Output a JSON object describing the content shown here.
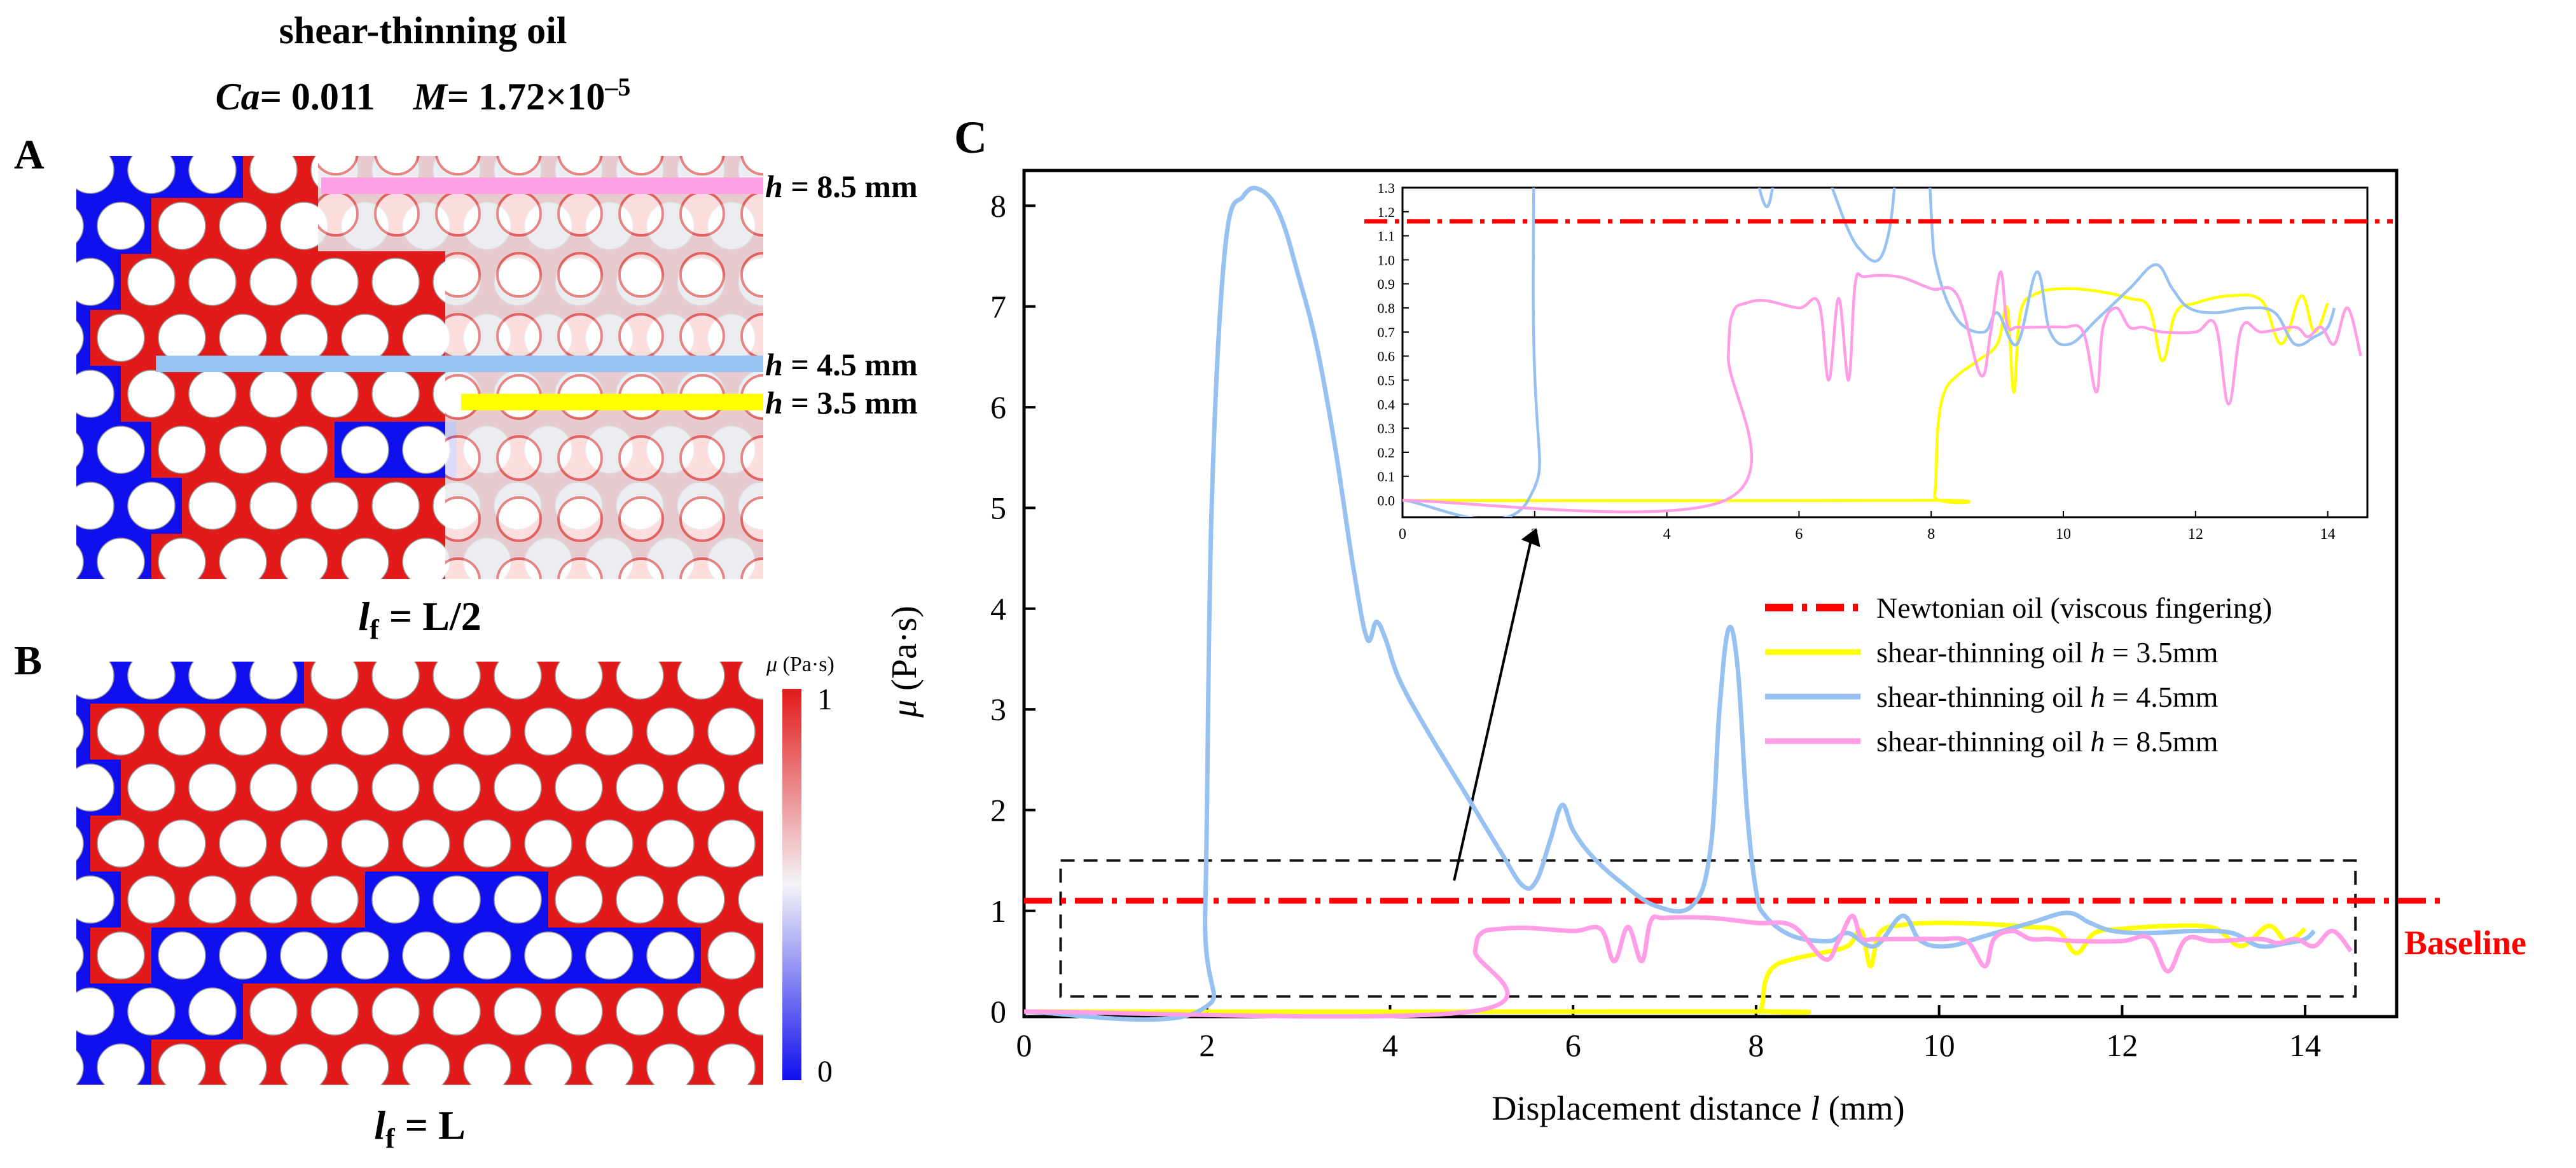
{
  "figure": {
    "title": "shear-thinning oil",
    "params": {
      "ca_label": "Ca",
      "ca_value": "= 0.011",
      "m_label": "M",
      "m_value": "= 1.72×10",
      "m_exponent": "–5"
    }
  },
  "panel_a": {
    "label": "A",
    "front": {
      "prefix": "l",
      "sub": "f",
      "value": " = L/2"
    },
    "lines": [
      {
        "label_var": "h",
        "label_text": " = 8.5 mm",
        "color": "#ff9ee6"
      },
      {
        "label_var": "h",
        "label_text": " = 4.5 mm",
        "color": "#96c1f0"
      },
      {
        "label_var": "h",
        "label_text": " = 3.5 mm",
        "color": "#ffff00"
      }
    ]
  },
  "panel_b": {
    "label": "B",
    "front": {
      "prefix": "l",
      "sub": "f",
      "value": " = L"
    },
    "colorbar": {
      "label_sym": "μ",
      "label_unit": " (Pa·s)",
      "max_label": "1",
      "min_label": "0"
    }
  },
  "colors": {
    "water": "#1010ee",
    "oil": "#e21a1a",
    "grain": "#ffffff",
    "newtonian": "#ff0000",
    "yellow": "#ffff00",
    "blue": "#96c1f0",
    "pink": "#ff9ee6"
  },
  "chart_data": {
    "type": "line",
    "panel_label": "C",
    "xlabel": "Displacement distance l (mm)",
    "xlabel_parts": {
      "pre": "Displacement distance ",
      "var": "l",
      "post": " (mm)"
    },
    "ylabel": "μ (Pa·s)",
    "ylabel_parts": {
      "var": "μ",
      "post": " (Pa·s)"
    },
    "xlim": [
      0,
      15
    ],
    "ylim": [
      -0.05,
      8.35
    ],
    "xticks": [
      0,
      2,
      4,
      6,
      8,
      10,
      12,
      14
    ],
    "yticks": [
      0,
      1,
      2,
      3,
      4,
      5,
      6,
      7,
      8
    ],
    "baseline": {
      "label": "Baseline",
      "y": 1.1
    },
    "legend_position": "right",
    "series": [
      {
        "name": "Newtonian oil (viscous fingering)",
        "name_parts": [
          "Newtonian oil (viscous fingering)"
        ],
        "color": "#ff0000",
        "style": "dashdot",
        "x": [
          0,
          15.5
        ],
        "y": [
          1.1,
          1.1
        ]
      },
      {
        "name": "shear-thinning oil h = 3.5mm",
        "name_parts": [
          "shear-thinning oil ",
          "h",
          " = 3.5mm"
        ],
        "color": "#ffff00",
        "style": "solid",
        "x": [
          0,
          7.9,
          8.05,
          8.1,
          8.2,
          8.4,
          8.7,
          9.0,
          9.15,
          9.25,
          9.35,
          9.6,
          10.0,
          10.5,
          11.0,
          11.3,
          11.5,
          11.7,
          12.0,
          12.5,
          13.0,
          13.3,
          13.6,
          13.8,
          14.0
        ],
        "y": [
          0,
          0,
          0.02,
          0.3,
          0.45,
          0.52,
          0.58,
          0.65,
          0.8,
          0.45,
          0.78,
          0.86,
          0.88,
          0.87,
          0.84,
          0.8,
          0.58,
          0.78,
          0.82,
          0.85,
          0.83,
          0.65,
          0.85,
          0.7,
          0.82
        ]
      },
      {
        "name": "shear-thinning oil h = 4.5mm",
        "name_parts": [
          "shear-thinning oil ",
          "h",
          " = 4.5mm"
        ],
        "color": "#96c1f0",
        "style": "solid",
        "x": [
          0,
          1.9,
          1.98,
          2.05,
          2.2,
          2.4,
          2.6,
          2.8,
          3.0,
          3.2,
          3.4,
          3.6,
          3.75,
          3.85,
          3.95,
          4.1,
          4.4,
          4.8,
          5.2,
          5.45,
          5.6,
          5.75,
          5.88,
          6.0,
          6.2,
          6.5,
          6.9,
          7.3,
          7.5,
          7.6,
          7.7,
          7.8,
          7.9,
          8.0,
          8.1,
          8.4,
          8.8,
          9.0,
          9.3,
          9.6,
          9.8,
          10.1,
          10.5,
          11.0,
          11.4,
          11.65,
          11.9,
          12.3,
          12.8,
          13.2,
          13.5,
          13.8,
          14.0,
          14.1
        ],
        "y": [
          0,
          0,
          1.0,
          5.0,
          7.6,
          8.1,
          8.15,
          7.9,
          7.3,
          6.6,
          5.6,
          4.4,
          3.7,
          3.87,
          3.7,
          3.3,
          2.8,
          2.2,
          1.6,
          1.25,
          1.3,
          1.7,
          2.05,
          1.8,
          1.55,
          1.3,
          1.05,
          1.05,
          1.6,
          3.0,
          3.8,
          3.4,
          2.0,
          1.2,
          0.95,
          0.75,
          0.7,
          0.78,
          0.65,
          0.95,
          0.7,
          0.65,
          0.75,
          0.88,
          0.98,
          0.88,
          0.8,
          0.78,
          0.8,
          0.78,
          0.65,
          0.68,
          0.72,
          0.8
        ]
      },
      {
        "name": "shear-thinning oil h = 8.5mm",
        "name_parts": [
          "shear-thinning oil ",
          "h",
          " = 8.5mm"
        ],
        "color": "#ff9ee6",
        "style": "solid",
        "x": [
          0,
          4.88,
          4.93,
          5.0,
          5.2,
          5.5,
          6.0,
          6.3,
          6.45,
          6.6,
          6.75,
          6.85,
          7.0,
          7.5,
          8.0,
          8.4,
          8.75,
          8.9,
          9.05,
          9.15,
          9.3,
          9.6,
          10.0,
          10.3,
          10.5,
          10.6,
          10.8,
          11.0,
          11.2,
          11.5,
          12.0,
          12.3,
          12.5,
          12.7,
          13.0,
          13.5,
          13.7,
          13.9,
          14.1,
          14.3,
          14.5
        ],
        "y": [
          0,
          0,
          0.6,
          0.78,
          0.82,
          0.83,
          0.8,
          0.82,
          0.5,
          0.84,
          0.5,
          0.9,
          0.93,
          0.93,
          0.88,
          0.85,
          0.52,
          0.7,
          0.95,
          0.73,
          0.72,
          0.72,
          0.72,
          0.7,
          0.45,
          0.72,
          0.8,
          0.72,
          0.72,
          0.7,
          0.7,
          0.73,
          0.4,
          0.72,
          0.7,
          0.72,
          0.68,
          0.72,
          0.65,
          0.8,
          0.6
        ]
      }
    ],
    "inset": {
      "xlim": [
        0,
        14.6
      ],
      "ylim": [
        -0.07,
        1.3
      ],
      "xticks": [
        0,
        2,
        4,
        6,
        8,
        10,
        12,
        14
      ],
      "yticks": [
        0.0,
        0.1,
        0.2,
        0.3,
        0.4,
        0.5,
        0.6,
        0.7,
        0.8,
        0.9,
        1.0,
        1.1,
        1.2,
        1.3
      ]
    }
  }
}
